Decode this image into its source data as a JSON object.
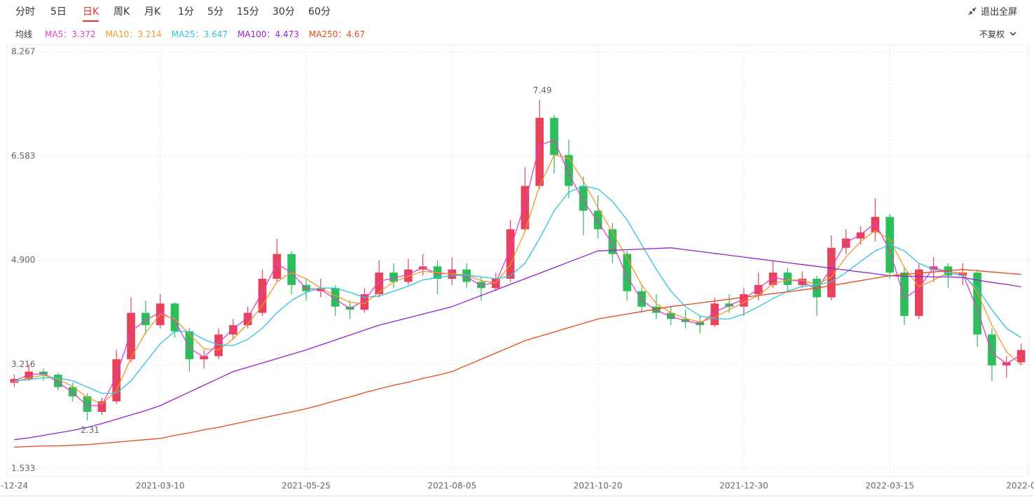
{
  "toolbar": {
    "periods": [
      "分时",
      "5日",
      "日K",
      "周K",
      "月K",
      "1分",
      "5分",
      "15分",
      "30分",
      "60分"
    ],
    "active": 2,
    "exit_fullscreen": "退出全屏",
    "ma_label": "均线",
    "adjust": "不复权"
  },
  "chart_data": {
    "type": "candlestick",
    "legend_separator": "：",
    "categories": [
      "-12-24",
      null,
      null,
      null,
      null,
      null,
      null,
      null,
      null,
      null,
      "2021-03-10",
      null,
      null,
      null,
      null,
      null,
      null,
      null,
      null,
      null,
      "2021-05-25",
      null,
      null,
      null,
      null,
      null,
      null,
      null,
      null,
      null,
      "2021-08-05",
      null,
      null,
      null,
      null,
      null,
      null,
      null,
      null,
      null,
      "2021-10-20",
      null,
      null,
      null,
      null,
      null,
      null,
      null,
      null,
      null,
      "2021-12-30",
      null,
      null,
      null,
      null,
      null,
      null,
      null,
      null,
      null,
      "2022-03-15",
      null,
      null,
      null,
      null,
      null,
      null,
      null,
      null,
      "2022-0"
    ],
    "open": [
      2.92,
      2.98,
      3.1,
      3.05,
      2.85,
      2.7,
      2.45,
      2.62,
      3.3,
      4.05,
      3.85,
      4.2,
      3.75,
      3.3,
      3.35,
      3.7,
      3.85,
      4.05,
      4.6,
      5.0,
      4.5,
      4.4,
      4.45,
      4.15,
      4.1,
      4.35,
      4.7,
      4.55,
      4.75,
      4.8,
      4.6,
      4.75,
      4.55,
      4.45,
      4.6,
      5.4,
      6.1,
      7.2,
      6.6,
      6.1,
      5.7,
      5.4,
      5.0,
      4.4,
      4.15,
      4.05,
      3.95,
      3.9,
      3.85,
      4.2,
      4.15,
      4.35,
      4.5,
      4.7,
      4.5,
      4.6,
      4.3,
      5.1,
      5.25,
      5.35,
      5.6,
      4.7,
      4.0,
      4.75,
      4.8,
      4.65,
      4.7,
      3.7,
      3.2,
      3.25
    ],
    "high": [
      3.05,
      3.22,
      3.15,
      3.08,
      2.92,
      2.75,
      2.68,
      3.45,
      4.3,
      4.25,
      4.35,
      4.22,
      3.8,
      3.45,
      3.8,
      3.95,
      4.15,
      4.75,
      5.25,
      5.05,
      4.6,
      4.6,
      4.5,
      4.25,
      4.45,
      4.9,
      4.85,
      4.92,
      5.0,
      4.9,
      4.95,
      4.85,
      4.62,
      4.7,
      5.55,
      6.4,
      7.49,
      7.25,
      6.85,
      6.25,
      5.95,
      5.5,
      5.05,
      4.5,
      4.35,
      4.15,
      4.1,
      4.0,
      4.3,
      4.35,
      4.45,
      4.7,
      4.9,
      4.78,
      4.72,
      4.65,
      5.3,
      5.4,
      5.45,
      5.9,
      5.65,
      4.8,
      4.85,
      4.95,
      4.85,
      4.85,
      4.75,
      3.8,
      3.35,
      3.55
    ],
    "low": [
      2.85,
      2.95,
      2.95,
      2.8,
      2.62,
      2.31,
      2.4,
      2.58,
      3.25,
      3.7,
      3.8,
      3.65,
      3.1,
      3.15,
      3.3,
      3.62,
      3.8,
      4.0,
      4.55,
      4.35,
      4.25,
      4.3,
      4.0,
      3.95,
      4.05,
      4.3,
      4.45,
      4.5,
      4.65,
      4.35,
      4.5,
      4.45,
      4.25,
      4.4,
      4.55,
      5.35,
      6.05,
      6.3,
      5.9,
      5.3,
      5.25,
      4.85,
      4.25,
      4.05,
      3.95,
      3.85,
      3.8,
      3.72,
      3.82,
      4.05,
      4.0,
      4.25,
      4.45,
      4.4,
      4.45,
      4.0,
      4.25,
      5.0,
      5.15,
      5.2,
      4.6,
      3.85,
      3.95,
      4.55,
      4.45,
      4.5,
      3.5,
      2.95,
      3.0,
      3.2
    ],
    "close": [
      2.98,
      3.1,
      3.05,
      2.85,
      2.7,
      2.45,
      2.62,
      3.3,
      4.05,
      3.85,
      4.2,
      3.75,
      3.3,
      3.35,
      3.7,
      3.85,
      4.05,
      4.6,
      5.0,
      4.5,
      4.4,
      4.45,
      4.15,
      4.1,
      4.35,
      4.7,
      4.55,
      4.75,
      4.8,
      4.6,
      4.75,
      4.55,
      4.45,
      4.6,
      5.4,
      6.1,
      7.2,
      6.6,
      6.1,
      5.7,
      5.4,
      5.0,
      4.4,
      4.15,
      4.05,
      3.95,
      3.9,
      3.85,
      4.2,
      4.15,
      4.35,
      4.5,
      4.7,
      4.5,
      4.6,
      4.3,
      5.1,
      5.25,
      5.35,
      5.6,
      4.7,
      4.0,
      4.75,
      4.8,
      4.65,
      4.7,
      3.7,
      3.2,
      3.25,
      3.45
    ],
    "up_color": "#e8415b",
    "down_color": "#2dbd5a",
    "series": [
      {
        "name": "MA5",
        "color": "#e23fc6",
        "latest": 3.372,
        "values": [
          2.95,
          3.05,
          3.07,
          2.93,
          2.76,
          2.55,
          2.55,
          3.03,
          3.75,
          3.93,
          4.06,
          3.93,
          3.48,
          3.33,
          3.56,
          3.79,
          3.97,
          4.38,
          4.84,
          4.7,
          4.44,
          4.43,
          4.27,
          4.12,
          4.25,
          4.56,
          4.61,
          4.67,
          4.78,
          4.68,
          4.69,
          4.63,
          4.49,
          4.54,
          5.08,
          5.82,
          6.76,
          6.84,
          6.3,
          5.86,
          5.52,
          5.16,
          4.64,
          4.25,
          4.09,
          3.99,
          3.92,
          3.87,
          4.06,
          4.17,
          4.27,
          4.44,
          4.62,
          4.58,
          4.56,
          4.42,
          4.78,
          5.19,
          5.31,
          5.5,
          5.06,
          4.28,
          4.45,
          4.78,
          4.71,
          4.68,
          4.1,
          3.4,
          3.23,
          3.37
        ]
      },
      {
        "name": "MA10",
        "color": "#f0962c",
        "latest": 3.214,
        "values": [
          2.93,
          3.0,
          3.04,
          2.98,
          2.86,
          2.68,
          2.58,
          2.79,
          3.32,
          3.73,
          4.03,
          3.95,
          3.7,
          3.47,
          3.45,
          3.63,
          3.87,
          4.17,
          4.55,
          4.7,
          4.6,
          4.45,
          4.33,
          4.22,
          4.2,
          4.38,
          4.55,
          4.64,
          4.72,
          4.7,
          4.68,
          4.66,
          4.57,
          4.53,
          4.83,
          5.37,
          6.1,
          6.6,
          6.55,
          6.18,
          5.75,
          5.35,
          4.93,
          4.5,
          4.2,
          4.05,
          3.96,
          3.9,
          3.98,
          4.1,
          4.22,
          4.33,
          4.52,
          4.58,
          4.58,
          4.5,
          4.63,
          4.95,
          5.2,
          5.38,
          5.23,
          4.78,
          4.47,
          4.58,
          4.7,
          4.7,
          4.38,
          3.85,
          3.42,
          3.21
        ]
      },
      {
        "name": "MA25",
        "color": "#2cc3e2",
        "latest": 3.647,
        "values": [
          2.95,
          2.97,
          3.0,
          3.0,
          2.95,
          2.85,
          2.75,
          2.75,
          2.95,
          3.25,
          3.55,
          3.75,
          3.75,
          3.62,
          3.53,
          3.52,
          3.62,
          3.8,
          4.05,
          4.25,
          4.38,
          4.45,
          4.45,
          4.38,
          4.3,
          4.32,
          4.4,
          4.48,
          4.58,
          4.62,
          4.65,
          4.66,
          4.63,
          4.6,
          4.65,
          4.85,
          5.25,
          5.7,
          6.0,
          6.1,
          6.05,
          5.85,
          5.55,
          5.15,
          4.75,
          4.4,
          4.15,
          4.0,
          3.95,
          3.95,
          4.03,
          4.15,
          4.28,
          4.4,
          4.48,
          4.5,
          4.55,
          4.7,
          4.88,
          5.05,
          5.15,
          5.05,
          4.85,
          4.75,
          4.7,
          4.65,
          4.45,
          4.1,
          3.8,
          3.65
        ]
      },
      {
        "name": "MA100",
        "color": "#951fd2",
        "latest": 4.473,
        "values": [
          2.0,
          2.03,
          2.07,
          2.11,
          2.15,
          2.2,
          2.26,
          2.33,
          2.4,
          2.47,
          2.55,
          2.66,
          2.77,
          2.88,
          2.99,
          3.1,
          3.17,
          3.24,
          3.31,
          3.38,
          3.45,
          3.53,
          3.61,
          3.69,
          3.77,
          3.85,
          3.91,
          3.97,
          4.03,
          4.09,
          4.15,
          4.24,
          4.33,
          4.42,
          4.51,
          4.6,
          4.69,
          4.78,
          4.87,
          4.96,
          5.05,
          5.06,
          5.07,
          5.08,
          5.09,
          5.1,
          5.07,
          5.04,
          5.01,
          4.98,
          4.95,
          4.92,
          4.89,
          4.86,
          4.83,
          4.8,
          4.77,
          4.74,
          4.71,
          4.68,
          4.65,
          4.64,
          4.64,
          4.63,
          4.63,
          4.62,
          4.58,
          4.54,
          4.51,
          4.47
        ]
      },
      {
        "name": "MA250",
        "color": "#e5481e",
        "latest": 4.67,
        "values": [
          1.88,
          1.89,
          1.9,
          1.9,
          1.91,
          1.92,
          1.94,
          1.96,
          1.98,
          2.0,
          2.02,
          2.07,
          2.11,
          2.16,
          2.2,
          2.25,
          2.3,
          2.35,
          2.4,
          2.45,
          2.5,
          2.56,
          2.63,
          2.69,
          2.76,
          2.82,
          2.88,
          2.93,
          2.99,
          3.04,
          3.1,
          3.2,
          3.3,
          3.4,
          3.5,
          3.6,
          3.67,
          3.74,
          3.81,
          3.88,
          3.95,
          3.99,
          4.03,
          4.07,
          4.11,
          4.15,
          4.18,
          4.21,
          4.24,
          4.27,
          4.3,
          4.33,
          4.36,
          4.39,
          4.42,
          4.45,
          4.49,
          4.53,
          4.57,
          4.61,
          4.65,
          4.67,
          4.69,
          4.71,
          4.73,
          4.75,
          4.73,
          4.71,
          4.69,
          4.67
        ]
      }
    ],
    "ylim": [
      1.533,
      8.267
    ],
    "yticks": [
      1.533,
      3.216,
      {
        "value": 4.9,
        "label": "4.900"
      },
      6.583,
      8.267
    ],
    "grid": true,
    "max_label_index": 36,
    "min_label_index": 5
  }
}
